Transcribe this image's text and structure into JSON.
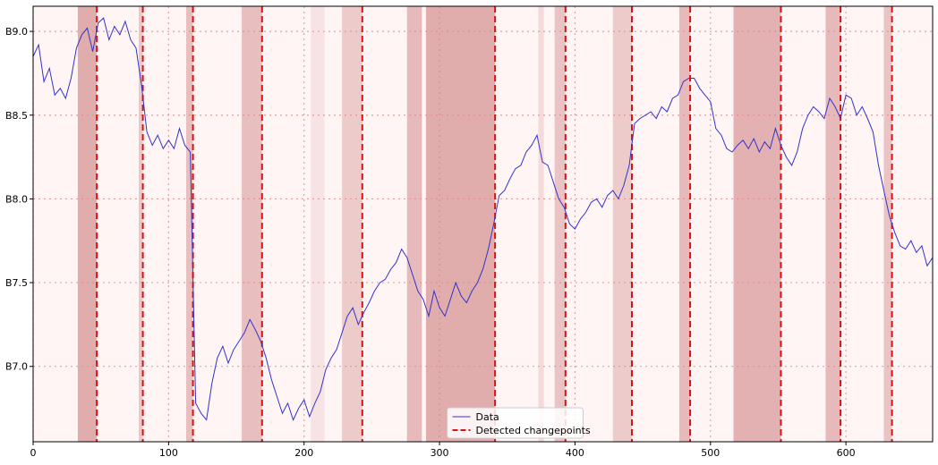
{
  "chart_data": {
    "type": "line",
    "title": "",
    "xlabel": "",
    "ylabel": "",
    "xlim": [
      0,
      664
    ],
    "ylim": [
      86.55,
      89.15
    ],
    "x_ticks": [
      0,
      100,
      200,
      300,
      400,
      500,
      600
    ],
    "x_tick_labels": [
      "0",
      "100",
      "200",
      "300",
      "400",
      "500",
      "600"
    ],
    "y_ticks": [
      87.0,
      87.5,
      88.0,
      88.5,
      89.0
    ],
    "y_tick_labels": [
      "B7.0",
      "B7.5",
      "B8.0",
      "B8.5",
      "B9.0"
    ],
    "grid": true,
    "colors": {
      "data_line": "#3333cc",
      "changepoint": "#dd1111",
      "background": "#fff5f5",
      "shade": "#d99a9a",
      "grid": "#e08a8a"
    },
    "series": [
      {
        "name": "Data",
        "style": "line",
        "x": [
          0,
          4,
          8,
          12,
          16,
          20,
          24,
          28,
          32,
          36,
          40,
          44,
          48,
          52,
          56,
          60,
          64,
          68,
          72,
          76,
          80,
          84,
          88,
          92,
          96,
          100,
          104,
          108,
          112,
          116,
          120,
          124,
          128,
          132,
          136,
          140,
          144,
          148,
          152,
          156,
          160,
          164,
          168,
          172,
          176,
          180,
          184,
          188,
          192,
          196,
          200,
          204,
          208,
          212,
          216,
          220,
          224,
          228,
          232,
          236,
          240,
          244,
          248,
          252,
          256,
          260,
          264,
          268,
          272,
          276,
          280,
          284,
          288,
          292,
          296,
          300,
          304,
          308,
          312,
          316,
          320,
          324,
          328,
          332,
          336,
          340,
          344,
          348,
          352,
          356,
          360,
          364,
          368,
          372,
          376,
          380,
          384,
          388,
          392,
          396,
          400,
          404,
          408,
          412,
          416,
          420,
          424,
          428,
          432,
          436,
          440,
          444,
          448,
          452,
          456,
          460,
          464,
          468,
          472,
          476,
          480,
          484,
          488,
          492,
          496,
          500,
          504,
          508,
          512,
          516,
          520,
          524,
          528,
          532,
          536,
          540,
          544,
          548,
          552,
          556,
          560,
          564,
          568,
          572,
          576,
          580,
          584,
          588,
          592,
          596,
          600,
          604,
          608,
          612,
          616,
          620,
          624,
          628,
          632,
          636,
          640,
          644,
          648,
          652,
          656,
          660,
          664
        ],
        "y": [
          88.85,
          88.92,
          88.7,
          88.78,
          88.62,
          88.66,
          88.6,
          88.72,
          88.9,
          88.98,
          89.02,
          88.88,
          89.05,
          89.08,
          88.95,
          89.03,
          88.98,
          89.06,
          88.95,
          88.9,
          88.68,
          88.4,
          88.32,
          88.38,
          88.3,
          88.35,
          88.3,
          88.42,
          88.32,
          88.28,
          86.78,
          86.72,
          86.68,
          86.9,
          87.05,
          87.12,
          87.02,
          87.1,
          87.15,
          87.2,
          87.28,
          87.22,
          87.15,
          87.05,
          86.92,
          86.82,
          86.72,
          86.78,
          86.68,
          86.75,
          86.8,
          86.7,
          86.78,
          86.85,
          86.98,
          87.05,
          87.1,
          87.2,
          87.3,
          87.35,
          87.25,
          87.32,
          87.38,
          87.45,
          87.5,
          87.52,
          87.58,
          87.62,
          87.7,
          87.65,
          87.55,
          87.45,
          87.4,
          87.3,
          87.45,
          87.35,
          87.3,
          87.4,
          87.5,
          87.42,
          87.38,
          87.45,
          87.5,
          87.58,
          87.7,
          87.85,
          88.02,
          88.05,
          88.12,
          88.18,
          88.2,
          88.28,
          88.32,
          88.38,
          88.22,
          88.2,
          88.1,
          88.0,
          87.95,
          87.85,
          87.82,
          87.88,
          87.92,
          87.98,
          88.0,
          87.95,
          88.02,
          88.05,
          88.0,
          88.08,
          88.2,
          88.45,
          88.48,
          88.5,
          88.52,
          88.48,
          88.55,
          88.52,
          88.6,
          88.62,
          88.7,
          88.72,
          88.72,
          88.66,
          88.62,
          88.58,
          88.42,
          88.38,
          88.3,
          88.28,
          88.32,
          88.35,
          88.3,
          88.36,
          88.28,
          88.34,
          88.3,
          88.42,
          88.32,
          88.25,
          88.2,
          88.28,
          88.42,
          88.5,
          88.55,
          88.52,
          88.48,
          88.6,
          88.55,
          88.48,
          88.62,
          88.6,
          88.5,
          88.55,
          88.48,
          88.4,
          88.2,
          88.05,
          87.9,
          87.8,
          87.72,
          87.7,
          87.75,
          87.68,
          87.72,
          87.6,
          87.65
        ]
      },
      {
        "name": "Detected changepoints",
        "style": "dashed-vertical",
        "x": [
          47,
          81,
          118,
          169,
          243,
          341,
          393,
          442,
          485,
          552,
          596,
          634
        ]
      }
    ],
    "shaded_regions": [
      {
        "x": [
          33,
          47
        ],
        "intensity": 0.8
      },
      {
        "x": [
          78,
          81
        ],
        "intensity": 0.5
      },
      {
        "x": [
          113,
          118
        ],
        "intensity": 0.6
      },
      {
        "x": [
          154,
          169
        ],
        "intensity": 0.6
      },
      {
        "x": [
          205,
          215
        ],
        "intensity": 0.2
      },
      {
        "x": [
          228,
          243
        ],
        "intensity": 0.45
      },
      {
        "x": [
          276,
          287
        ],
        "intensity": 0.65
      },
      {
        "x": [
          290,
          341
        ],
        "intensity": 0.8
      },
      {
        "x": [
          373,
          377
        ],
        "intensity": 0.3
      },
      {
        "x": [
          385,
          393
        ],
        "intensity": 0.55
      },
      {
        "x": [
          428,
          442
        ],
        "intensity": 0.45
      },
      {
        "x": [
          477,
          485
        ],
        "intensity": 0.65
      },
      {
        "x": [
          517,
          552
        ],
        "intensity": 0.75
      },
      {
        "x": [
          585,
          596
        ],
        "intensity": 0.65
      },
      {
        "x": [
          628,
          634
        ],
        "intensity": 0.55
      }
    ],
    "legend": {
      "placement": "lower-center",
      "entries": [
        "Data",
        "Detected changepoints"
      ]
    }
  }
}
